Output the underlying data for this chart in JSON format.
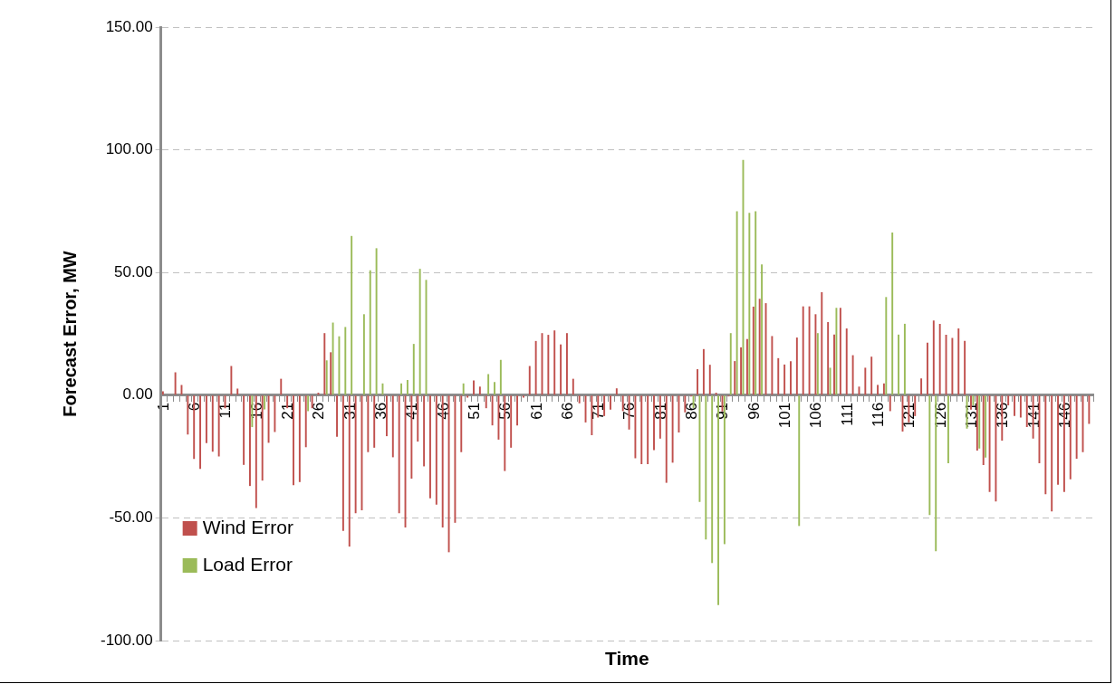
{
  "chart_data": {
    "type": "bar",
    "categories": [
      "1",
      null,
      null,
      null,
      null,
      "6",
      null,
      null,
      null,
      null,
      "11",
      null,
      null,
      null,
      null,
      "16",
      null,
      null,
      null,
      null,
      "21",
      null,
      null,
      null,
      null,
      "26",
      null,
      null,
      null,
      null,
      "31",
      null,
      null,
      null,
      null,
      "36",
      null,
      null,
      null,
      null,
      "41",
      null,
      null,
      null,
      null,
      "46",
      null,
      null,
      null,
      null,
      "51",
      null,
      null,
      null,
      null,
      "56",
      null,
      null,
      null,
      null,
      "61",
      null,
      null,
      null,
      null,
      "66",
      null,
      null,
      null,
      null,
      "71",
      null,
      null,
      null,
      null,
      "76",
      null,
      null,
      null,
      null,
      "81",
      null,
      null,
      null,
      null,
      "86",
      null,
      null,
      null,
      null,
      "91",
      null,
      null,
      null,
      null,
      "96",
      null,
      null,
      null,
      null,
      "101",
      null,
      null,
      null,
      null,
      "106",
      null,
      null,
      null,
      null,
      "111",
      null,
      null,
      null,
      null,
      "116",
      null,
      null,
      null,
      null,
      "121",
      null,
      null,
      null,
      null,
      "126",
      null,
      null,
      null,
      null,
      "131",
      null,
      null,
      null,
      null,
      "136",
      null,
      null,
      null,
      null,
      "141",
      null,
      null,
      null,
      null,
      "146",
      null,
      null,
      null,
      null
    ],
    "series": [
      {
        "name": "Wind Error",
        "color": "#c0504d",
        "values": [
          1.6,
          0,
          9.3,
          4.2,
          -16,
          -26,
          -30,
          -19.5,
          -23,
          -25,
          -5.3,
          11.9,
          2.7,
          -28.4,
          -37,
          -46,
          -34.8,
          -19.4,
          -15,
          6.7,
          -5.3,
          -36.7,
          -35.4,
          -21.2,
          -5.3,
          1,
          25.3,
          17.5,
          -16.9,
          -55.3,
          -61.7,
          -48.1,
          -46.9,
          -23.2,
          -21.4,
          0,
          -16.7,
          -25.3,
          -48.1,
          -53.9,
          -34,
          -18.9,
          -29,
          -42,
          -44.6,
          -53.9,
          -64,
          -52,
          -23.2,
          -1,
          6,
          3.5,
          -5.3,
          -12.3,
          -18.1,
          -30.9,
          -21.4,
          -12.3,
          -1,
          11.9,
          22.1,
          25.3,
          24.6,
          26.4,
          20.7,
          25.3,
          6.7,
          -3.3,
          -11.1,
          -16.3,
          -9.1,
          -8.5,
          -5.9,
          2.8,
          -6.5,
          -14,
          -25.7,
          -28.1,
          -28.1,
          -22.4,
          -17.7,
          -35.7,
          -27.5,
          -15.2,
          -7,
          -0.5,
          10.6,
          18.8,
          12.4,
          1,
          -6.6,
          -0.5,
          13.9,
          19.5,
          22.9,
          36.1,
          39.3,
          37.5,
          24.1,
          15.1,
          12.5,
          13.8,
          23.5,
          36.2,
          36.2,
          33,
          42,
          29.8,
          24.7,
          35.6,
          27.2,
          16.3,
          3.5,
          11.2,
          15.7,
          4.2,
          4.8,
          -6.5,
          0,
          -14.8,
          -11.1,
          -8.5,
          6.8,
          21.4,
          30.4,
          29.1,
          24.6,
          23.3,
          27.2,
          22.1,
          -5.9,
          -22.6,
          -28.5,
          -39.4,
          -43.3,
          -18.5,
          -4.1,
          -8.5,
          -9.1,
          -13,
          -17.7,
          -27.7,
          -40.4,
          -47.4,
          -36.5,
          -39.4,
          -34.3,
          -25.9,
          -23.2,
          -11.7
        ]
      },
      {
        "name": "Load Error",
        "color": "#9bbb59",
        "values": [
          0,
          0,
          0,
          0,
          0,
          0,
          0,
          0,
          0,
          0,
          0,
          0,
          0,
          0,
          -13,
          0,
          -5.8,
          0,
          0,
          0,
          0,
          0,
          0,
          -6.5,
          0,
          0,
          14.2,
          29.6,
          24,
          27.8,
          64.9,
          0,
          33,
          50.9,
          59.9,
          4.8,
          0,
          0,
          4.8,
          6.2,
          20.9,
          51.5,
          47,
          0,
          0,
          0,
          0,
          0,
          4.8,
          0,
          0,
          0,
          8.6,
          5.4,
          14.4,
          0,
          0,
          0,
          0,
          0,
          0,
          0,
          0,
          0,
          0,
          0,
          0,
          0,
          0,
          0,
          0,
          0,
          0,
          0,
          0,
          0,
          0,
          0,
          0,
          0,
          0,
          0,
          0,
          0,
          0,
          -5.2,
          -43.5,
          -58.8,
          -68.4,
          -85.5,
          -60.7,
          25.3,
          75,
          95.9,
          74.3,
          75,
          53.3,
          0,
          0,
          0,
          0,
          0,
          -53.3,
          0,
          0,
          25.3,
          0,
          11.2,
          35.6,
          0,
          0,
          0,
          0,
          0,
          0,
          0,
          40,
          66.3,
          24.7,
          29.1,
          0,
          0,
          0,
          -48.8,
          -63.6,
          0,
          -27.7,
          0,
          0,
          -13.6,
          -4.1,
          -21.7,
          -25.4,
          0,
          0,
          0,
          0,
          0,
          0,
          0,
          0,
          0,
          0,
          0,
          0,
          0,
          0,
          0,
          0,
          0
        ]
      }
    ],
    "ylabel": "Forecast Error, MW",
    "xlabel": "Time",
    "ylim": [
      -100,
      150
    ],
    "yticks": [
      {
        "value": -100,
        "label": "-100.00"
      },
      {
        "value": -50,
        "label": "-50.00"
      },
      {
        "value": 0,
        "label": "0.00"
      },
      {
        "value": 50,
        "label": "50.00"
      },
      {
        "value": 100,
        "label": "100.00"
      },
      {
        "value": 150,
        "label": "150.00"
      }
    ],
    "grid": "y",
    "legend": "bottom left"
  }
}
